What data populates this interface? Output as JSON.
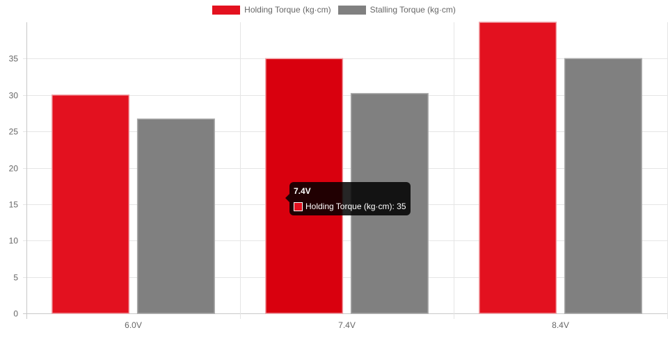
{
  "legend": [
    {
      "label": "Holding Torque (kg·cm)",
      "color": "#e3111f"
    },
    {
      "label": "Stalling Torque (kg·cm)",
      "color": "#808080"
    }
  ],
  "tooltip": {
    "title": "7.4V",
    "label": "Holding Torque (kg·cm): 35",
    "color": "#e3111f"
  },
  "chart_data": {
    "type": "bar",
    "categories": [
      "6.0V",
      "7.4V",
      "8.4V"
    ],
    "series": [
      {
        "name": "Holding Torque (kg·cm)",
        "values": [
          30,
          35,
          40
        ],
        "color": "#e3111f"
      },
      {
        "name": "Stalling Torque (kg·cm)",
        "values": [
          26.7,
          30.2,
          35
        ],
        "color": "#808080"
      }
    ],
    "ylim": [
      0,
      40
    ],
    "yticks": [
      "0",
      "5",
      "10",
      "15",
      "20",
      "25",
      "30",
      "35"
    ],
    "grid": true,
    "legend_position": "top-center",
    "highlighted": {
      "series": 0,
      "category": 1,
      "color": "#d9000e"
    }
  }
}
